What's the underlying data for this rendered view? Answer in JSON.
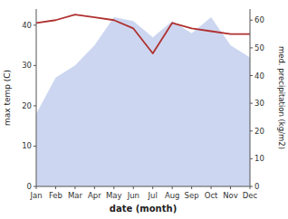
{
  "chart_data": {
    "type": "area",
    "x_label": "date (month)",
    "y_label": "max temp (C)",
    "y2_label": "med. precipitation (kg/m2)",
    "categories": [
      "Jan",
      "Feb",
      "Mar",
      "Apr",
      "May",
      "Jun",
      "Jul",
      "Aug",
      "Sep",
      "Oct",
      "Nov",
      "Dec"
    ],
    "series": [
      {
        "type": "area",
        "color": "#b0c0e8",
        "values": [
          18,
          27,
          30,
          35,
          42,
          41,
          37,
          41,
          38,
          42,
          35,
          32
        ]
      },
      {
        "type": "line",
        "axis": "y2",
        "color": "#b03030",
        "values": [
          59,
          60,
          62,
          61,
          60,
          57,
          48,
          59,
          57,
          56,
          55,
          55
        ]
      }
    ],
    "ylim": [
      0,
      44
    ],
    "yticks": [
      0,
      10,
      20,
      30,
      40
    ],
    "y2lim": [
      0,
      64
    ],
    "y2ticks": [
      0,
      10,
      20,
      30,
      40,
      50,
      60
    ],
    "grid": false
  }
}
